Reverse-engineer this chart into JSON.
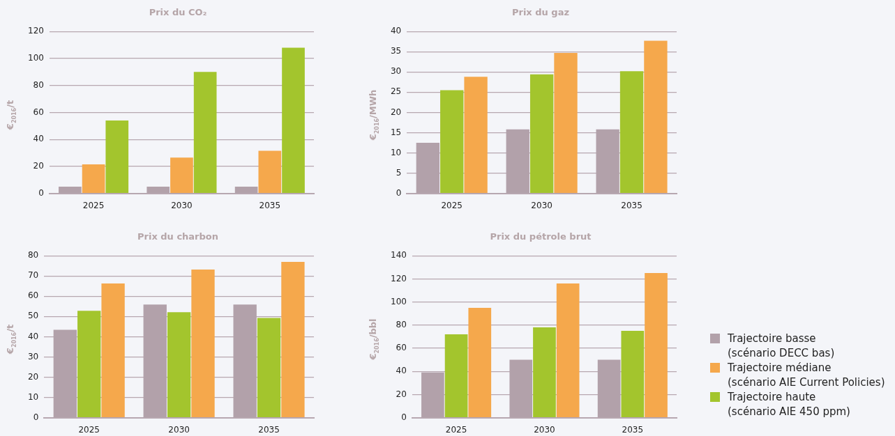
{
  "chart_data": [
    {
      "type": "bar",
      "title": "Prix du CO₂",
      "ylabel": "€$_{2016}$/t",
      "categories": [
        "2025",
        "2030",
        "2035"
      ],
      "ylim": [
        0,
        120
      ],
      "yticks": [
        0,
        20,
        40,
        60,
        80,
        100,
        120
      ],
      "grid": "y",
      "legend": "right",
      "series": [
        {
          "name": "Trajectoire basse\n(scénario DECC bas)",
          "color": "#b2a1aa",
          "values": [
            5,
            5,
            5
          ]
        },
        {
          "name": "Trajectoire médiane\n(scénario AIE Current Policies)",
          "color": "#f5a84c",
          "values": [
            21.5,
            26.5,
            31.5
          ]
        },
        {
          "name": "Trajectoire haute\n(scénario AIE 450 ppm)",
          "color": "#a3c52d",
          "values": [
            54,
            90,
            108
          ]
        }
      ]
    },
    {
      "type": "bar",
      "title": "Prix du gaz",
      "ylabel": "€$_{2016}$/MWh",
      "categories": [
        "2025",
        "2030",
        "2035"
      ],
      "ylim": [
        0,
        40
      ],
      "yticks": [
        0,
        5,
        10,
        15,
        20,
        25,
        30,
        35,
        40
      ],
      "grid": "y",
      "series": [
        {
          "color": "#b2a1aa",
          "values": [
            12.5,
            15.8,
            15.8
          ]
        },
        {
          "color": "#a3c52d",
          "values": [
            25.5,
            29.4,
            30.2
          ]
        },
        {
          "color": "#f5a84c",
          "values": [
            28.8,
            34.7,
            37.7
          ]
        }
      ]
    },
    {
      "type": "bar",
      "title": "Prix du charbon",
      "ylabel": "€$_{2016}$/t",
      "categories": [
        "2025",
        "2030",
        "2035"
      ],
      "ylim": [
        0,
        80
      ],
      "yticks": [
        0,
        10,
        20,
        30,
        40,
        50,
        60,
        70,
        80
      ],
      "grid": "y",
      "series": [
        {
          "color": "#b2a1aa",
          "values": [
            43.4,
            55.9,
            55.9
          ]
        },
        {
          "color": "#a3c52d",
          "values": [
            52.8,
            52.1,
            49.3
          ]
        },
        {
          "color": "#f5a84c",
          "values": [
            66.3,
            73.2,
            77
          ]
        }
      ]
    },
    {
      "type": "bar",
      "title": "Prix du pétrole brut",
      "ylabel": "€$_{2016}$/bbl",
      "categories": [
        "2025",
        "2030",
        "2035"
      ],
      "ylim": [
        0,
        140
      ],
      "yticks": [
        0,
        20,
        40,
        60,
        80,
        100,
        120,
        140
      ],
      "grid": "y",
      "series": [
        {
          "color": "#b2a1aa",
          "values": [
            39,
            50,
            50
          ]
        },
        {
          "color": "#a3c52d",
          "values": [
            72,
            78,
            75
          ]
        },
        {
          "color": "#f5a84c",
          "values": [
            95,
            116,
            125
          ]
        }
      ]
    }
  ]
}
